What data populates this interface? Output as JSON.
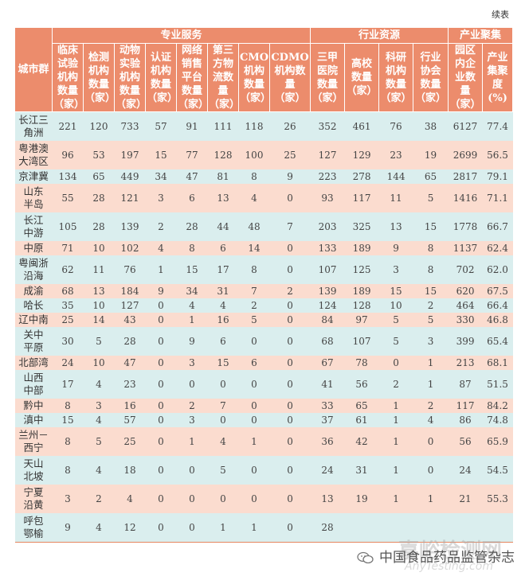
{
  "continued_label": "续表",
  "header": {
    "corner": "城市群",
    "groups": [
      {
        "label": "专业服务",
        "span": 8
      },
      {
        "label": "行业资源",
        "span": 4
      },
      {
        "label": "产业聚集",
        "span": 2
      }
    ],
    "columns": [
      "临床试验机构数量（家）",
      "检测机构数量（家）",
      "动物实验机构数量（家）",
      "认证机构数量（家）",
      "网络销售平台数量（家）",
      "第三方物流数量（家）",
      "CMO机构数量（家）",
      "CDMO机构数量（家）",
      "三甲医院数量（家）",
      "高校数量（家）",
      "科研机构数量（家）",
      "行业协会数量（家）",
      "园区内企业数量（家）",
      "产业集聚度(%)"
    ],
    "columns_display": [
      [
        "临床",
        "试验",
        "机构",
        "数量",
        "（家）"
      ],
      [
        "检测",
        "机构",
        "数量",
        "（家）"
      ],
      [
        "动物",
        "实验",
        "机构",
        "数量",
        "（家）"
      ],
      [
        "认证",
        "机构",
        "数量",
        "（家）"
      ],
      [
        "网络",
        "销售",
        "平台",
        "数量",
        "（家）"
      ],
      [
        "第三",
        "方物",
        "流数",
        "量",
        "（家）"
      ],
      [
        "CMO",
        "机构",
        "数量",
        "（家）"
      ],
      [
        "CDMO",
        "机构数",
        "量",
        "（家）"
      ],
      [
        "三甲",
        "医院",
        "数量",
        "（家）"
      ],
      [
        "高校",
        "数量",
        "（家）"
      ],
      [
        "科研",
        "机构",
        "数量",
        "（家）"
      ],
      [
        "行业",
        "协会",
        "数量",
        "（家）"
      ],
      [
        "园区",
        "内企",
        "业数",
        "量",
        "（家）"
      ],
      [
        "产业",
        "集聚",
        "度",
        "(%)"
      ]
    ]
  },
  "rows": [
    {
      "city": [
        "长江三",
        "角洲"
      ],
      "values": [
        "221",
        "120",
        "733",
        "57",
        "91",
        "111",
        "118",
        "26",
        "352",
        "461",
        "76",
        "38",
        "6127",
        "77.4"
      ]
    },
    {
      "city": [
        "粤港澳",
        "大湾区"
      ],
      "values": [
        "96",
        "53",
        "197",
        "15",
        "77",
        "128",
        "100",
        "25",
        "127",
        "129",
        "23",
        "19",
        "2699",
        "56.5"
      ]
    },
    {
      "city": [
        "京津冀"
      ],
      "values": [
        "134",
        "65",
        "449",
        "34",
        "47",
        "81",
        "8",
        "9",
        "223",
        "278",
        "144",
        "65",
        "2817",
        "79.1"
      ]
    },
    {
      "city": [
        "山东",
        "半岛"
      ],
      "values": [
        "55",
        "28",
        "121",
        "3",
        "6",
        "13",
        "4",
        "0",
        "93",
        "117",
        "11",
        "5",
        "1416",
        "71.1"
      ]
    },
    {
      "city": [
        "长江",
        "中游"
      ],
      "values": [
        "105",
        "28",
        "139",
        "2",
        "28",
        "44",
        "48",
        "7",
        "203",
        "325",
        "13",
        "15",
        "1778",
        "66.7"
      ]
    },
    {
      "city": [
        "中原"
      ],
      "values": [
        "71",
        "10",
        "102",
        "4",
        "8",
        "6",
        "14",
        "0",
        "133",
        "189",
        "9",
        "8",
        "1137",
        "62.4"
      ]
    },
    {
      "city": [
        "粤闽浙",
        "沿海"
      ],
      "values": [
        "62",
        "11",
        "76",
        "1",
        "15",
        "17",
        "8",
        "0",
        "107",
        "125",
        "3",
        "8",
        "702",
        "62.0"
      ]
    },
    {
      "city": [
        "成渝"
      ],
      "values": [
        "68",
        "13",
        "184",
        "9",
        "34",
        "31",
        "7",
        "2",
        "139",
        "189",
        "15",
        "15",
        "620",
        "67.5"
      ]
    },
    {
      "city": [
        "哈长"
      ],
      "values": [
        "35",
        "10",
        "127",
        "0",
        "4",
        "4",
        "2",
        "0",
        "124",
        "128",
        "10",
        "2",
        "464",
        "66.4"
      ]
    },
    {
      "city": [
        "辽中南"
      ],
      "values": [
        "25",
        "14",
        "43",
        "0",
        "1",
        "16",
        "5",
        "0",
        "84",
        "97",
        "5",
        "5",
        "330",
        "46.8"
      ]
    },
    {
      "city": [
        "关中",
        "平原"
      ],
      "values": [
        "30",
        "5",
        "28",
        "0",
        "9",
        "6",
        "0",
        "0",
        "68",
        "107",
        "5",
        "3",
        "399",
        "65.4"
      ]
    },
    {
      "city": [
        "北部湾"
      ],
      "values": [
        "24",
        "10",
        "47",
        "0",
        "3",
        "15",
        "6",
        "0",
        "67",
        "78",
        "0",
        "1",
        "213",
        "68.1"
      ]
    },
    {
      "city": [
        "山西",
        "中部"
      ],
      "values": [
        "17",
        "4",
        "23",
        "0",
        "0",
        "0",
        "0",
        "0",
        "41",
        "56",
        "2",
        "1",
        "87",
        "51.5"
      ]
    },
    {
      "city": [
        "黔中"
      ],
      "values": [
        "8",
        "3",
        "16",
        "0",
        "2",
        "7",
        "0",
        "0",
        "33",
        "65",
        "1",
        "2",
        "117",
        "84.2"
      ]
    },
    {
      "city": [
        "滇中"
      ],
      "values": [
        "15",
        "4",
        "57",
        "0",
        "3",
        "0",
        "0",
        "0",
        "37",
        "61",
        "1",
        "4",
        "86",
        "74.8"
      ]
    },
    {
      "city": [
        "兰州－",
        "西宁"
      ],
      "values": [
        "8",
        "5",
        "25",
        "0",
        "1",
        "4",
        "1",
        "0",
        "36",
        "42",
        "1",
        "0",
        "56",
        "65.9"
      ]
    },
    {
      "city": [
        "天山",
        "北坡"
      ],
      "values": [
        "8",
        "4",
        "18",
        "0",
        "0",
        "5",
        "0",
        "0",
        "24",
        "31",
        "1",
        "0",
        "24",
        "54.5"
      ]
    },
    {
      "city": [
        "宁夏",
        "沿黄"
      ],
      "values": [
        "3",
        "2",
        "4",
        "0",
        "0",
        "0",
        "0",
        "0",
        "13",
        "19",
        "1",
        "1",
        "21",
        "55.3"
      ]
    },
    {
      "city": [
        "呼包",
        "鄂榆"
      ],
      "values": [
        "9",
        "4",
        "12",
        "0",
        "0",
        "1",
        "1",
        "0",
        "28",
        "",
        "",
        "",
        "",
        ""
      ]
    }
  ],
  "watermark": {
    "source": "中国食品药品监管杂志",
    "site_cn": "嘉峪检测网",
    "site_en": "AnyTesting.com"
  },
  "colors": {
    "header_bg": "#ec8c6c",
    "row_blue": "#daeeee",
    "row_pink": "#fbdccf"
  }
}
